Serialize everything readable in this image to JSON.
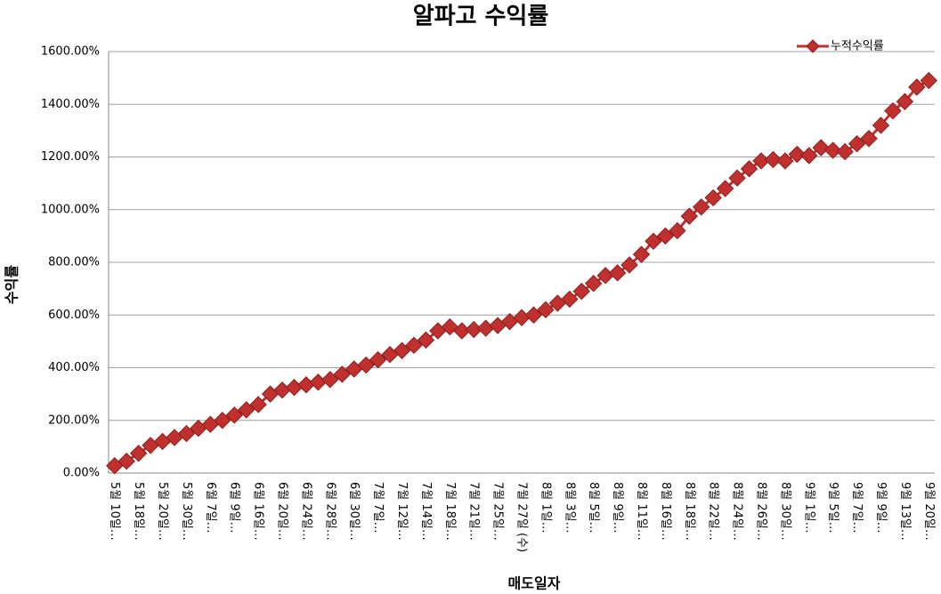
{
  "chart_data": {
    "type": "line",
    "title": "알파고 수익률",
    "x_label": "매도일자",
    "y_label": "수익률",
    "categories": [
      "5월 10일…",
      null,
      "5월 18일…",
      null,
      "5월 20일…",
      null,
      "5월 30일…",
      null,
      "6월 7일…",
      null,
      "6월 9일…",
      null,
      "6월 16일…",
      null,
      "6월 20일…",
      null,
      "6월 24일…",
      null,
      "6월 28일…",
      null,
      "6월 30일…",
      null,
      "7월 7일…",
      null,
      "7월 12일…",
      null,
      "7월 14일…",
      null,
      "7월 18일…",
      null,
      "7월 21일…",
      null,
      "7월 25일…",
      null,
      "7월 27일 (수)",
      null,
      "8월 1일…",
      null,
      "8월 3일…",
      null,
      "8월 5일…",
      null,
      "8월 9일…",
      null,
      "8월 11일…",
      null,
      "8월 16일…",
      null,
      "8월 18일…",
      null,
      "8월 22일…",
      null,
      "8월 24일…",
      null,
      "8월 26일…",
      null,
      "8월 30일…",
      null,
      "9월 1일…",
      null,
      "9월 5일…",
      null,
      "9월 7일…",
      null,
      "9월 9일…",
      null,
      "9월 13일…",
      null,
      "9월 20일…"
    ],
    "series": [
      {
        "name": "누적수익률",
        "color": "#c0302e",
        "values": [
          28,
          45,
          75,
          105,
          120,
          135,
          150,
          170,
          185,
          200,
          220,
          240,
          260,
          300,
          315,
          325,
          335,
          345,
          355,
          375,
          395,
          410,
          430,
          450,
          465,
          485,
          505,
          540,
          555,
          540,
          545,
          550,
          560,
          575,
          590,
          600,
          620,
          645,
          660,
          690,
          720,
          750,
          760,
          790,
          830,
          880,
          900,
          920,
          975,
          1010,
          1045,
          1080,
          1120,
          1155,
          1185,
          1190,
          1185,
          1210,
          1205,
          1235,
          1225,
          1220,
          1250,
          1270,
          1320,
          1375,
          1410,
          1465,
          1490
        ]
      }
    ],
    "ylim": [
      0,
      1600
    ],
    "yticks": [
      {
        "value": 0,
        "label": "0.00%"
      },
      {
        "value": 200,
        "label": "200.00%"
      },
      {
        "value": 400,
        "label": "400.00%"
      },
      {
        "value": 600,
        "label": "600.00%"
      },
      {
        "value": 800,
        "label": "800.00%"
      },
      {
        "value": 1000,
        "label": "1000.00%"
      },
      {
        "value": 1200,
        "label": "1200.00%"
      },
      {
        "value": 1400,
        "label": "1400.00%"
      },
      {
        "value": 1600,
        "label": "1600.00%"
      }
    ],
    "grid": true,
    "legend": "top-right"
  }
}
